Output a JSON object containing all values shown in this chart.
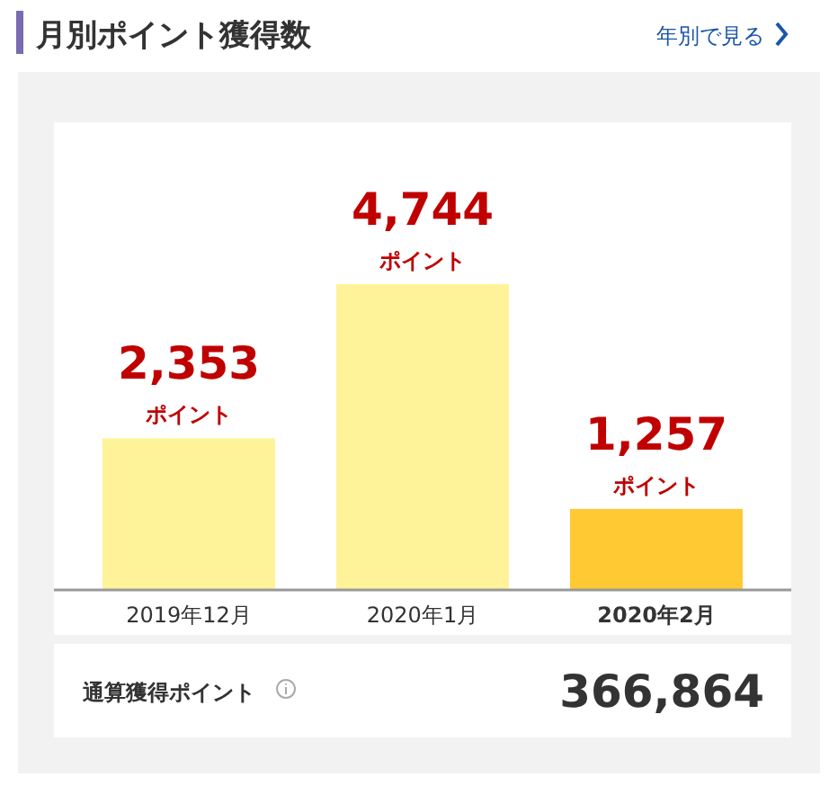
{
  "chart_data": {
    "type": "bar",
    "title": "月別ポイント獲得数",
    "categories": [
      "2019年12月",
      "2020年1月",
      "2020年2月"
    ],
    "values": [
      2353,
      4744,
      1257
    ],
    "colors": [
      "#fff399",
      "#fff399",
      "#ffc933"
    ],
    "value_labels": [
      "2,353\nポイント",
      "4,744\nポイント",
      "1,257\nポイント"
    ],
    "annotations": [
      "年別で見る",
      "通算獲得ポイント",
      "366,864"
    ]
  }
}
